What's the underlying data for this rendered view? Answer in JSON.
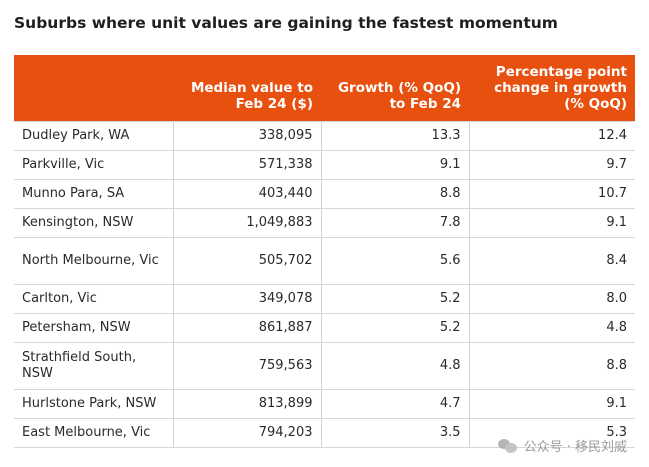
{
  "title": "Suburbs where unit values are gaining the fastest momentum",
  "header": {
    "col1": "",
    "col2": "Median value to Feb 24 ($)",
    "col3": "Growth (% QoQ) to Feb 24",
    "col4": "Percentage point change in growth (% QoQ)"
  },
  "rows": [
    {
      "suburb": "Dudley Park, WA",
      "median": "338,095",
      "growth": "13.3",
      "change": "12.4"
    },
    {
      "suburb": "Parkville, Vic",
      "median": "571,338",
      "growth": "9.1",
      "change": "9.7"
    },
    {
      "suburb": "Munno Para, SA",
      "median": "403,440",
      "growth": "8.8",
      "change": "10.7"
    },
    {
      "suburb": "Kensington, NSW",
      "median": "1,049,883",
      "growth": "7.8",
      "change": "9.1"
    },
    {
      "suburb": "North Melbourne, Vic",
      "median": "505,702",
      "growth": "5.6",
      "change": "8.4"
    },
    {
      "suburb": "Carlton, Vic",
      "median": "349,078",
      "growth": "5.2",
      "change": "8.0"
    },
    {
      "suburb": "Petersham, NSW",
      "median": "861,887",
      "growth": "5.2",
      "change": "4.8"
    },
    {
      "suburb": "Strathfield South, NSW",
      "median": "759,563",
      "growth": "4.8",
      "change": "8.8"
    },
    {
      "suburb": "Hurlstone Park, NSW",
      "median": "813,899",
      "growth": "4.7",
      "change": "9.1"
    },
    {
      "suburb": "East Melbourne, Vic",
      "median": "794,203",
      "growth": "3.5",
      "change": "5.3"
    }
  ],
  "watermark": {
    "text": "公众号 · 移民刘威",
    "icon": "wechat-icon"
  },
  "colors": {
    "header_bg": "#e8500f",
    "header_text": "#ffffff"
  }
}
